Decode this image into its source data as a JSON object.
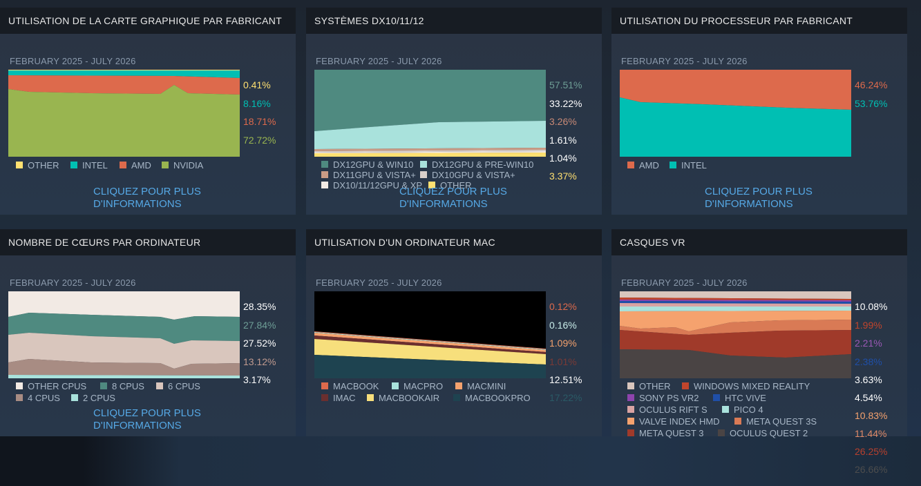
{
  "more_label_1": "CLIQUEZ POUR PLUS",
  "more_label_2": "D'INFORMATIONS",
  "panels": [
    {
      "title": "UTILISATION DE LA CARTE GRAPHIQUE PAR FABRICANT",
      "range": "FEBRUARY 2025 - JULY 2026",
      "legend": [
        "OTHER",
        "INTEL",
        "AMD",
        "NVIDIA"
      ],
      "percents": [
        "0.41%",
        "8.16%",
        "18.71%",
        "72.72%"
      ],
      "colors": [
        "#ffe071",
        "#00bfb3",
        "#dd6a4c",
        "#99b550"
      ]
    },
    {
      "title": "SYSTÈMES DX10/11/12",
      "range": "FEBRUARY 2025 - JULY 2026",
      "legend": [
        "DX12GPU & WIN10",
        "DX12GPU & PRE-WIN10",
        "DX11GPU & VISTA+",
        "DX10GPU & VISTA+",
        "DX10/11/12GPU & XP",
        "OTHER"
      ],
      "percents": [
        "57.51%",
        "33.22%",
        "3.26%",
        "1.61%",
        "1.04%",
        "3.37%"
      ],
      "colors": [
        "#4f8a80",
        "#a9e2dc",
        "#c99b85",
        "#d9cfc9",
        "#f2eae4",
        "#ffe071"
      ],
      "pct_colors": [
        "#6e9e96",
        "#ffffff",
        "#c98a76",
        "#ffffff",
        "#ffffff",
        "#ffe071"
      ]
    },
    {
      "title": "UTILISATION DU PROCESSEUR PAR FABRICANT",
      "range": "FEBRUARY 2025 - JULY 2026",
      "legend": [
        "AMD",
        "INTEL"
      ],
      "percents": [
        "46.24%",
        "53.76%"
      ],
      "colors": [
        "#dd6a4c",
        "#00bfb3"
      ]
    },
    {
      "title": "NOMBRE DE CŒURS PAR ORDINATEUR",
      "range": "FEBRUARY 2025 - JULY 2026",
      "legend": [
        "OTHER CPUS",
        "8 CPUS",
        "6 CPUS",
        "4 CPUS",
        "2 CPUS"
      ],
      "percents": [
        "28.35%",
        "27.84%",
        "27.52%",
        "13.12%",
        "3.17%"
      ],
      "colors": [
        "#f2eae4",
        "#4f8a80",
        "#d9c6bd",
        "#a88c83",
        "#a9e2dc"
      ],
      "pct_colors": [
        "#ffffff",
        "#6e9e96",
        "#ffffff",
        "#c09a8f",
        "#ffffff"
      ]
    },
    {
      "title": "UTILISATION D'UN ORDINATEUR MAC",
      "range": "FEBRUARY 2025 - JULY 2026",
      "legend": [
        "MACBOOK",
        "MACPRO",
        "MACMINI",
        "IMAC",
        "MACBOOKAIR",
        "MACBOOKPRO"
      ],
      "percents": [
        "0.12%",
        "0.16%",
        "1.09%",
        "1.01%",
        "12.51%",
        "17.22%"
      ],
      "colors": [
        "#dd6a4c",
        "#a9e2dc",
        "#f5a26e",
        "#6b2f2f",
        "#f7df7c",
        "#1e4350"
      ],
      "pct_colors": [
        "#dd6a4c",
        "#c9eeea",
        "#f5a26e",
        "#7a3a36",
        "#ffffff",
        "#2a5a66"
      ]
    },
    {
      "title": "CASQUES VR",
      "range": "FEBRUARY 2025 - JULY 2026",
      "legend": [
        "OTHER",
        "WINDOWS MIXED REALITY",
        "SONY PS VR2",
        "HTC VIVE",
        "OCULUS RIFT S",
        "PICO 4",
        "VALVE INDEX HMD",
        "META QUEST 3S",
        "META QUEST 3",
        "OCULUS QUEST 2"
      ],
      "percents": [
        "10.08%",
        "1.99%",
        "2.21%",
        "2.38%",
        "3.63%",
        "4.54%",
        "10.83%",
        "11.44%",
        "26.25%",
        "26.66%"
      ],
      "colors": [
        "#d9c6bd",
        "#c0452c",
        "#8e44ad",
        "#1f4fa8",
        "#d9a3a3",
        "#a9e2dc",
        "#f5a26e",
        "#d97a55",
        "#a03a2a",
        "#4a4444"
      ],
      "pct_colors": [
        "#ffffff",
        "#c0452c",
        "#9b59b6",
        "#1f4fa8",
        "#ffffff",
        "#ffffff",
        "#f5a26e",
        "#e08a68",
        "#b8402e",
        "#4d4d4d"
      ]
    }
  ],
  "chart_data": [
    {
      "type": "area",
      "title": "UTILISATION DE LA CARTE GRAPHIQUE PAR FABRICANT",
      "range": "FEBRUARY 2025 - JULY 2026",
      "series": [
        {
          "name": "OTHER",
          "values": [
            0.41
          ]
        },
        {
          "name": "INTEL",
          "values": [
            8.16
          ]
        },
        {
          "name": "AMD",
          "values": [
            18.71
          ]
        },
        {
          "name": "NVIDIA",
          "values": [
            72.72
          ]
        }
      ],
      "ylim": [
        0,
        100
      ]
    },
    {
      "type": "area",
      "title": "SYSTÈMES DX10/11/12",
      "range": "FEBRUARY 2025 - JULY 2026",
      "series": [
        {
          "name": "DX12GPU & WIN10",
          "values": [
            57.51
          ]
        },
        {
          "name": "DX12GPU & PRE-WIN10",
          "values": [
            33.22
          ]
        },
        {
          "name": "DX11GPU & VISTA+",
          "values": [
            3.26
          ]
        },
        {
          "name": "DX10GPU & VISTA+",
          "values": [
            1.61
          ]
        },
        {
          "name": "DX10/11/12GPU & XP",
          "values": [
            1.04
          ]
        },
        {
          "name": "OTHER",
          "values": [
            3.37
          ]
        }
      ],
      "ylim": [
        0,
        100
      ]
    },
    {
      "type": "area",
      "title": "UTILISATION DU PROCESSEUR PAR FABRICANT",
      "range": "FEBRUARY 2025 - JULY 2026",
      "series": [
        {
          "name": "AMD",
          "values": [
            46.24
          ]
        },
        {
          "name": "INTEL",
          "values": [
            53.76
          ]
        }
      ],
      "ylim": [
        0,
        100
      ]
    },
    {
      "type": "area",
      "title": "NOMBRE DE CŒURS PAR ORDINATEUR",
      "range": "FEBRUARY 2025 - JULY 2026",
      "series": [
        {
          "name": "OTHER CPUS",
          "values": [
            28.35
          ]
        },
        {
          "name": "8 CPUS",
          "values": [
            27.84
          ]
        },
        {
          "name": "6 CPUS",
          "values": [
            27.52
          ]
        },
        {
          "name": "4 CPUS",
          "values": [
            13.12
          ]
        },
        {
          "name": "2 CPUS",
          "values": [
            3.17
          ]
        }
      ],
      "ylim": [
        0,
        100
      ]
    },
    {
      "type": "area",
      "title": "UTILISATION D'UN ORDINATEUR MAC",
      "range": "FEBRUARY 2025 - JULY 2026",
      "series": [
        {
          "name": "MACBOOK",
          "values": [
            0.12
          ]
        },
        {
          "name": "MACPRO",
          "values": [
            0.16
          ]
        },
        {
          "name": "MACMINI",
          "values": [
            1.09
          ]
        },
        {
          "name": "IMAC",
          "values": [
            1.01
          ]
        },
        {
          "name": "MACBOOKAIR",
          "values": [
            12.51
          ]
        },
        {
          "name": "MACBOOKPRO",
          "values": [
            17.22
          ]
        }
      ],
      "ylim": [
        0,
        100
      ]
    },
    {
      "type": "area",
      "title": "CASQUES VR",
      "range": "FEBRUARY 2025 - JULY 2026",
      "series": [
        {
          "name": "OTHER",
          "values": [
            10.08
          ]
        },
        {
          "name": "WINDOWS MIXED REALITY",
          "values": [
            1.99
          ]
        },
        {
          "name": "SONY PS VR2",
          "values": [
            2.21
          ]
        },
        {
          "name": "HTC VIVE",
          "values": [
            2.38
          ]
        },
        {
          "name": "OCULUS RIFT S",
          "values": [
            3.63
          ]
        },
        {
          "name": "PICO 4",
          "values": [
            4.54
          ]
        },
        {
          "name": "VALVE INDEX HMD",
          "values": [
            10.83
          ]
        },
        {
          "name": "META QUEST 3S",
          "values": [
            11.44
          ]
        },
        {
          "name": "META QUEST 3",
          "values": [
            26.25
          ]
        },
        {
          "name": "OCULUS QUEST 2",
          "values": [
            26.66
          ]
        }
      ],
      "ylim": [
        0,
        100
      ]
    }
  ]
}
